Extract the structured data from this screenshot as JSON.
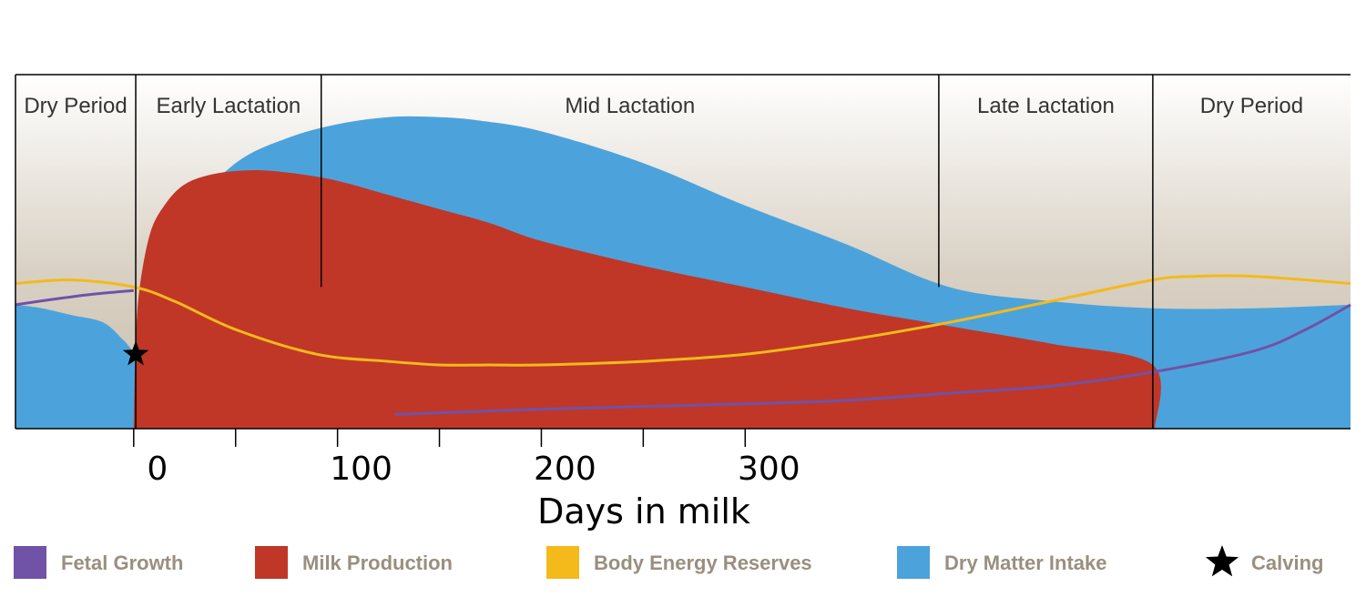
{
  "chart_data": {
    "type": "area",
    "title": "",
    "xlabel": "Days in milk",
    "ylabel": "",
    "xlim": [
      -58,
      597
    ],
    "ylim": [
      0,
      100
    ],
    "x_ticks": [
      0,
      100,
      200,
      300
    ],
    "x_tick_labels": [
      "0",
      "100",
      "200",
      "300"
    ],
    "minor_ticks": [
      50,
      150,
      250
    ],
    "grid": false,
    "legend_position": "bottom",
    "phases": [
      {
        "label": "Dry Period",
        "start": -58,
        "end": 1
      },
      {
        "label": "Early Lactation",
        "start": 1,
        "end": 92
      },
      {
        "label": "Mid Lactation",
        "start": 92,
        "end": 395
      },
      {
        "label": "Late Lactation",
        "start": 395,
        "end": 500
      },
      {
        "label": "Dry Period",
        "start": 500,
        "end": 597
      }
    ],
    "series": [
      {
        "name": "Dry Matter Intake",
        "kind": "area",
        "color": "#4ca3dc",
        "x": [
          -58,
          -45,
          -30,
          -15,
          -5,
          0,
          2,
          10,
          25,
          50,
          75,
          100,
          125,
          150,
          170,
          200,
          250,
          300,
          350,
          400,
          450,
          500,
          550,
          597
        ],
        "y": [
          35,
          34,
          32,
          30,
          25,
          22,
          25,
          42,
          60,
          75,
          82,
          86,
          88,
          88,
          87,
          84,
          75,
          63,
          52,
          40,
          36,
          34,
          34,
          35
        ]
      },
      {
        "name": "Milk Production",
        "kind": "area",
        "color": "#c03727",
        "x": [
          0,
          1,
          3,
          8,
          15,
          25,
          40,
          60,
          80,
          100,
          125,
          150,
          175,
          200,
          250,
          300,
          350,
          400,
          450,
          500,
          501
        ],
        "y": [
          0,
          25,
          40,
          55,
          63,
          69,
          72,
          73,
          72,
          70,
          66,
          62,
          58,
          53,
          46,
          40,
          34,
          29,
          24,
          18,
          0
        ]
      },
      {
        "name": "Body Energy Reserves",
        "kind": "line",
        "color": "#f4b91b",
        "x": [
          -58,
          -30,
          0,
          20,
          50,
          90,
          125,
          150,
          175,
          200,
          250,
          300,
          350,
          400,
          450,
          500,
          520,
          550,
          597
        ],
        "y": [
          41,
          42,
          40,
          36,
          28,
          21,
          19,
          18,
          18,
          18,
          19,
          21,
          25,
          30,
          36,
          42,
          43,
          43,
          41
        ]
      },
      {
        "name": "Fetal Growth",
        "kind": "line",
        "color": "#7052a7",
        "x": [
          -58,
          -40,
          -20,
          0
        ],
        "y": [
          35,
          36.5,
          38,
          39
        ]
      },
      {
        "name": "Fetal Growth (late)",
        "kind": "line",
        "color": "#7052a7",
        "x": [
          128,
          200,
          300,
          350,
          400,
          450,
          500,
          550,
          575,
          597
        ],
        "y": [
          4,
          5.5,
          7,
          8,
          10,
          12,
          16,
          22,
          28,
          35
        ]
      }
    ],
    "markers": [
      {
        "name": "Calving",
        "symbol": "star",
        "x": 1,
        "y": 21
      }
    ],
    "legend": [
      {
        "label": "Fetal Growth",
        "color": "#7052a7",
        "shape": "square"
      },
      {
        "label": "Milk Production",
        "color": "#c03727",
        "shape": "square"
      },
      {
        "label": "Body Energy Reserves",
        "color": "#f4b91b",
        "shape": "square"
      },
      {
        "label": "Dry Matter Intake",
        "color": "#4ca3dc",
        "shape": "square"
      },
      {
        "label": "Calving",
        "color": "#000000",
        "shape": "star"
      }
    ]
  }
}
